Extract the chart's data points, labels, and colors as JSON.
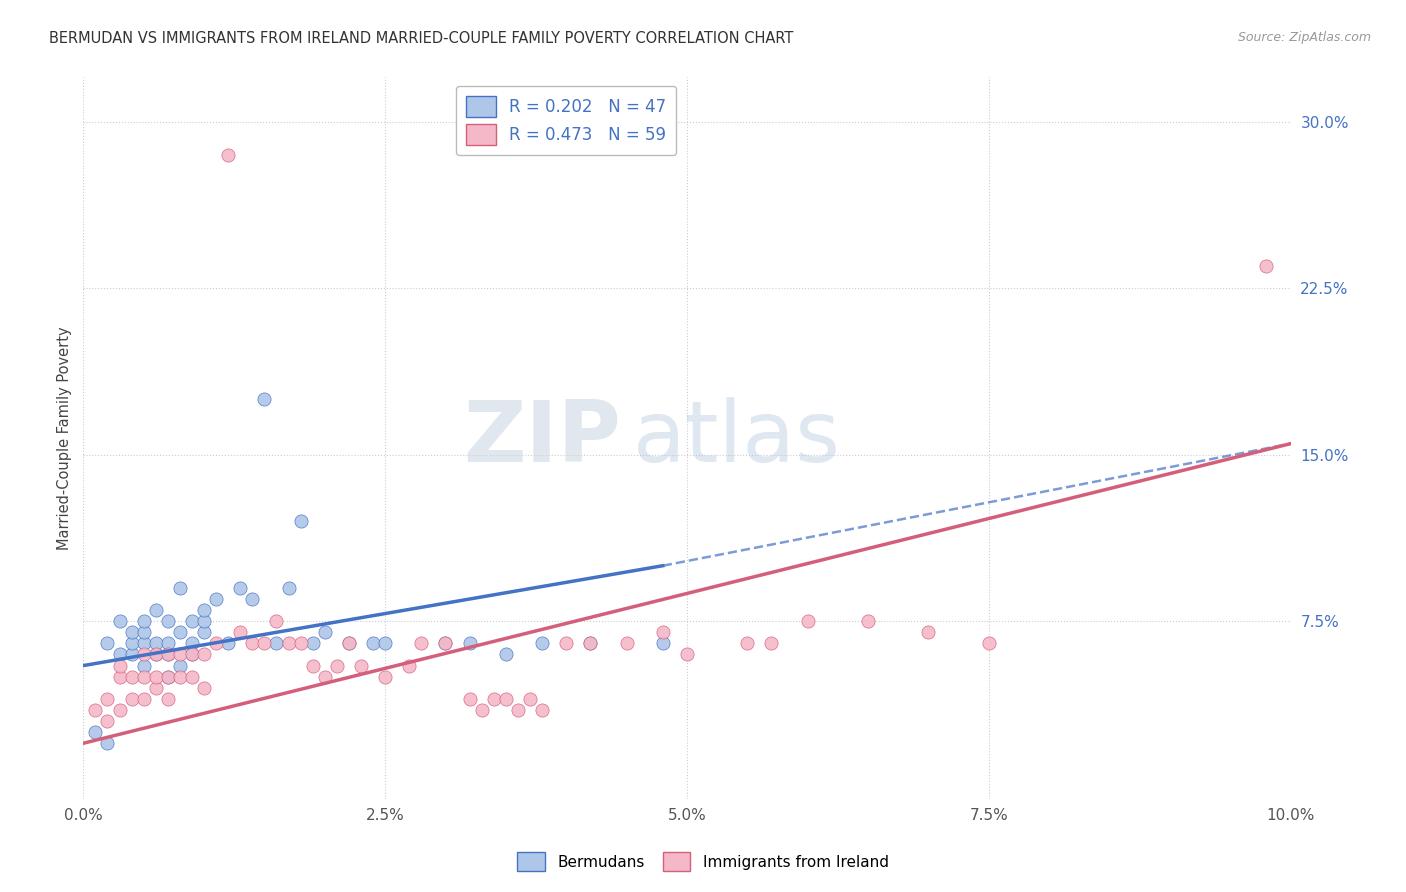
{
  "title": "BERMUDAN VS IMMIGRANTS FROM IRELAND MARRIED-COUPLE FAMILY POVERTY CORRELATION CHART",
  "source": "Source: ZipAtlas.com",
  "ylabel": "Married-Couple Family Poverty",
  "xlim": [
    0.0,
    0.1
  ],
  "ylim": [
    -0.005,
    0.32
  ],
  "xtick_labels": [
    "0.0%",
    "2.5%",
    "5.0%",
    "7.5%",
    "10.0%"
  ],
  "xtick_values": [
    0.0,
    0.025,
    0.05,
    0.075,
    0.1
  ],
  "ytick_labels": [
    "7.5%",
    "15.0%",
    "22.5%",
    "30.0%"
  ],
  "ytick_values": [
    0.075,
    0.15,
    0.225,
    0.3
  ],
  "legend_r1": "R = 0.202",
  "legend_n1": "N = 47",
  "legend_r2": "R = 0.473",
  "legend_n2": "N = 59",
  "bermuda_fill": "#aec6e8",
  "ireland_fill": "#f5b8c8",
  "blue_line": "#4472c4",
  "pink_line": "#d45f7a",
  "background_color": "#ffffff",
  "bermuda_x": [
    0.001,
    0.002,
    0.002,
    0.003,
    0.003,
    0.004,
    0.004,
    0.004,
    0.005,
    0.005,
    0.005,
    0.005,
    0.006,
    0.006,
    0.006,
    0.007,
    0.007,
    0.007,
    0.007,
    0.008,
    0.008,
    0.008,
    0.009,
    0.009,
    0.009,
    0.01,
    0.01,
    0.01,
    0.011,
    0.012,
    0.013,
    0.014,
    0.015,
    0.016,
    0.017,
    0.018,
    0.019,
    0.02,
    0.022,
    0.024,
    0.025,
    0.03,
    0.032,
    0.035,
    0.038,
    0.042,
    0.048
  ],
  "bermuda_y": [
    0.025,
    0.02,
    0.065,
    0.06,
    0.075,
    0.06,
    0.065,
    0.07,
    0.055,
    0.065,
    0.07,
    0.075,
    0.06,
    0.065,
    0.08,
    0.05,
    0.06,
    0.065,
    0.075,
    0.055,
    0.07,
    0.09,
    0.06,
    0.065,
    0.075,
    0.07,
    0.075,
    0.08,
    0.085,
    0.065,
    0.09,
    0.085,
    0.175,
    0.065,
    0.09,
    0.12,
    0.065,
    0.07,
    0.065,
    0.065,
    0.065,
    0.065,
    0.065,
    0.06,
    0.065,
    0.065,
    0.065
  ],
  "ireland_x": [
    0.001,
    0.002,
    0.002,
    0.003,
    0.003,
    0.003,
    0.004,
    0.004,
    0.005,
    0.005,
    0.005,
    0.006,
    0.006,
    0.006,
    0.007,
    0.007,
    0.007,
    0.008,
    0.008,
    0.009,
    0.009,
    0.01,
    0.01,
    0.011,
    0.012,
    0.013,
    0.014,
    0.015,
    0.016,
    0.017,
    0.018,
    0.019,
    0.02,
    0.021,
    0.022,
    0.023,
    0.025,
    0.027,
    0.028,
    0.03,
    0.032,
    0.033,
    0.034,
    0.035,
    0.036,
    0.037,
    0.038,
    0.04,
    0.042,
    0.045,
    0.048,
    0.05,
    0.055,
    0.057,
    0.06,
    0.065,
    0.07,
    0.075,
    0.098
  ],
  "ireland_y": [
    0.035,
    0.03,
    0.04,
    0.035,
    0.05,
    0.055,
    0.04,
    0.05,
    0.04,
    0.05,
    0.06,
    0.045,
    0.05,
    0.06,
    0.04,
    0.05,
    0.06,
    0.05,
    0.06,
    0.05,
    0.06,
    0.045,
    0.06,
    0.065,
    0.285,
    0.07,
    0.065,
    0.065,
    0.075,
    0.065,
    0.065,
    0.055,
    0.05,
    0.055,
    0.065,
    0.055,
    0.05,
    0.055,
    0.065,
    0.065,
    0.04,
    0.035,
    0.04,
    0.04,
    0.035,
    0.04,
    0.035,
    0.065,
    0.065,
    0.065,
    0.07,
    0.06,
    0.065,
    0.065,
    0.075,
    0.075,
    0.07,
    0.065,
    0.235
  ],
  "bermuda_line_x0": 0.0,
  "bermuda_line_y0": 0.055,
  "bermuda_line_x1": 0.048,
  "bermuda_line_y1": 0.1,
  "ireland_line_x0": 0.0,
  "ireland_line_y0": 0.02,
  "ireland_line_x1": 0.1,
  "ireland_line_y1": 0.155,
  "dash_line_x0": 0.048,
  "dash_line_y0": 0.1,
  "dash_line_x1": 0.1,
  "dash_line_y1": 0.155
}
